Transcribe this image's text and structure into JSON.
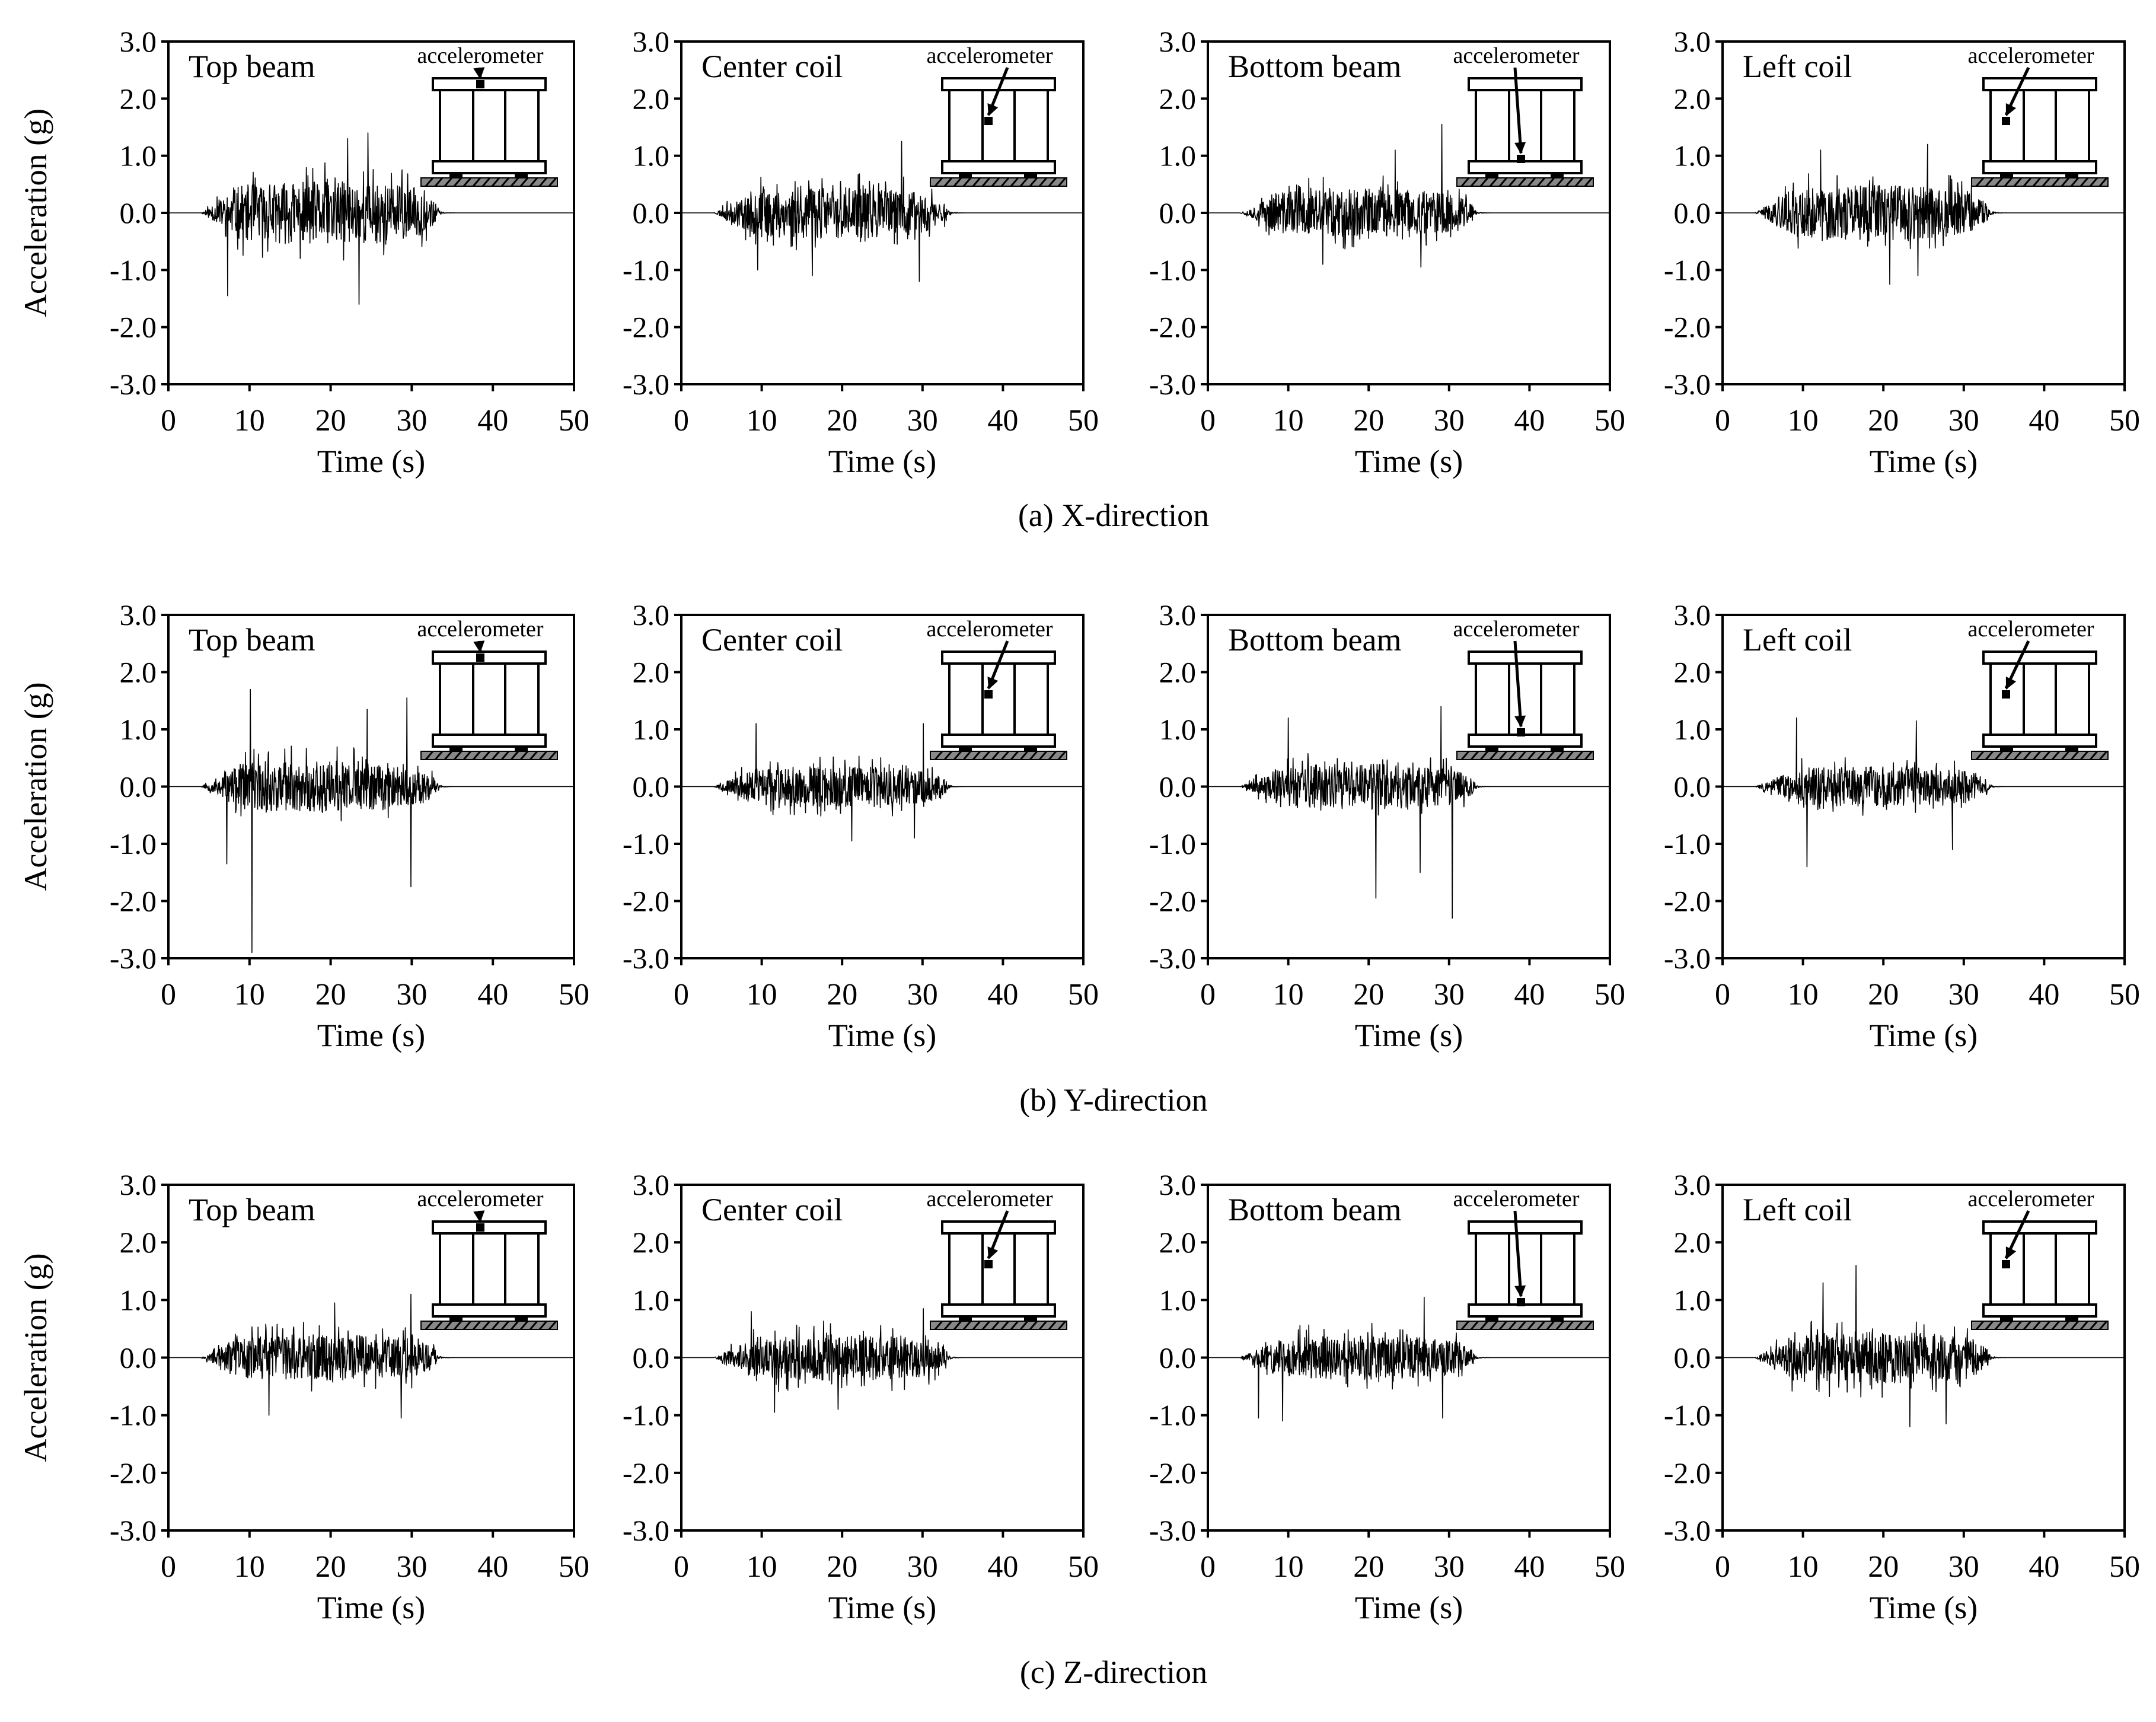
{
  "figure": {
    "rows": [
      {
        "caption": "(a) X-direction",
        "panels": [
          {
            "title": "Top beam",
            "inset_label": "accelerometer",
            "sensor": "top",
            "seed": 11,
            "amp": 0.55,
            "spikes": [
              [
                7.3,
                -1.45
              ],
              [
                23.5,
                -1.6
              ],
              [
                24.6,
                1.4
              ],
              [
                22.1,
                1.3
              ]
            ]
          },
          {
            "title": "Center coil",
            "inset_label": "accelerometer",
            "sensor": "center",
            "seed": 23,
            "amp": 0.45,
            "spikes": [
              [
                16.3,
                -1.1
              ],
              [
                27.4,
                1.25
              ],
              [
                29.6,
                -1.2
              ],
              [
                9.5,
                -1.0
              ]
            ]
          },
          {
            "title": "Bottom beam",
            "inset_label": "accelerometer",
            "sensor": "bottom",
            "seed": 37,
            "amp": 0.42,
            "spikes": [
              [
                29.1,
                1.55
              ],
              [
                26.5,
                -0.95
              ],
              [
                23.3,
                1.1
              ],
              [
                14.3,
                -0.9
              ]
            ]
          },
          {
            "title": "Left coil",
            "inset_label": "accelerometer",
            "sensor": "left",
            "seed": 41,
            "amp": 0.48,
            "spikes": [
              [
                20.8,
                -1.25
              ],
              [
                12.2,
                1.1
              ],
              [
                25.5,
                1.2
              ],
              [
                24.3,
                -1.1
              ]
            ]
          }
        ]
      },
      {
        "caption": "(b) Y-direction",
        "panels": [
          {
            "title": "Top beam",
            "inset_label": "accelerometer",
            "sensor": "top",
            "seed": 53,
            "amp": 0.45,
            "spikes": [
              [
                10.3,
                -2.9
              ],
              [
                10.1,
                1.7
              ],
              [
                7.2,
                -1.35
              ],
              [
                29.4,
                1.55
              ],
              [
                29.9,
                -1.75
              ],
              [
                24.5,
                1.35
              ]
            ]
          },
          {
            "title": "Center coil",
            "inset_label": "accelerometer",
            "sensor": "center",
            "seed": 67,
            "amp": 0.35,
            "spikes": [
              [
                9.3,
                1.1
              ],
              [
                21.2,
                -0.95
              ],
              [
                30.1,
                1.1
              ],
              [
                29.0,
                -0.9
              ]
            ]
          },
          {
            "title": "Bottom beam",
            "inset_label": "accelerometer",
            "sensor": "bottom",
            "seed": 71,
            "amp": 0.4,
            "spikes": [
              [
                20.9,
                -1.95
              ],
              [
                30.4,
                -2.3
              ],
              [
                26.4,
                -1.5
              ],
              [
                10.0,
                1.2
              ],
              [
                29.0,
                1.4
              ]
            ]
          },
          {
            "title": "Left coil",
            "inset_label": "accelerometer",
            "sensor": "left",
            "seed": 83,
            "amp": 0.35,
            "spikes": [
              [
                9.2,
                1.2
              ],
              [
                10.5,
                -1.4
              ],
              [
                28.6,
                -1.1
              ],
              [
                24.1,
                1.15
              ]
            ]
          }
        ]
      },
      {
        "caption": "(c) Z-direction",
        "panels": [
          {
            "title": "Top beam",
            "inset_label": "accelerometer",
            "sensor": "top",
            "seed": 97,
            "amp": 0.4,
            "spikes": [
              [
                29.9,
                1.1
              ],
              [
                28.7,
                -1.05
              ],
              [
                12.4,
                -1.0
              ],
              [
                20.5,
                0.95
              ]
            ]
          },
          {
            "title": "Center coil",
            "inset_label": "accelerometer",
            "sensor": "center",
            "seed": 101,
            "amp": 0.4,
            "spikes": [
              [
                11.6,
                -0.95
              ],
              [
                30.1,
                0.85
              ],
              [
                19.5,
                -0.9
              ],
              [
                8.7,
                0.8
              ]
            ]
          },
          {
            "title": "Bottom beam",
            "inset_label": "accelerometer",
            "sensor": "bottom",
            "seed": 113,
            "amp": 0.38,
            "spikes": [
              [
                26.9,
                1.05
              ],
              [
                9.3,
                -1.1
              ],
              [
                6.3,
                -1.05
              ],
              [
                29.2,
                -1.05
              ]
            ]
          },
          {
            "title": "Left coil",
            "inset_label": "accelerometer",
            "sensor": "left",
            "seed": 127,
            "amp": 0.45,
            "spikes": [
              [
                16.6,
                1.6
              ],
              [
                12.5,
                1.3
              ],
              [
                23.3,
                -1.2
              ],
              [
                27.8,
                -1.15
              ]
            ]
          }
        ]
      }
    ]
  },
  "chart_data": {
    "type": "line",
    "description_series": "acceleration time histories (12 panels)",
    "xlabel": "Time (s)",
    "ylabel": "Acceleration (g)",
    "xlim": [
      0,
      50
    ],
    "ylim": [
      -3,
      3
    ],
    "xticks": [
      "0",
      "10",
      "20",
      "30",
      "40",
      "50"
    ],
    "yticks": [
      "3.0",
      "2.0",
      "1.0",
      "0.0",
      "-1.0",
      "-2.0",
      "-3.0"
    ],
    "yticks_values": [
      3,
      2,
      1,
      0,
      -1,
      -2,
      -3
    ],
    "xticks_values": [
      0,
      10,
      20,
      30,
      40,
      50
    ],
    "excitation": {
      "start_s": 4,
      "end_s": 33,
      "peak_s": 22
    },
    "grid": false,
    "legend": "none"
  }
}
